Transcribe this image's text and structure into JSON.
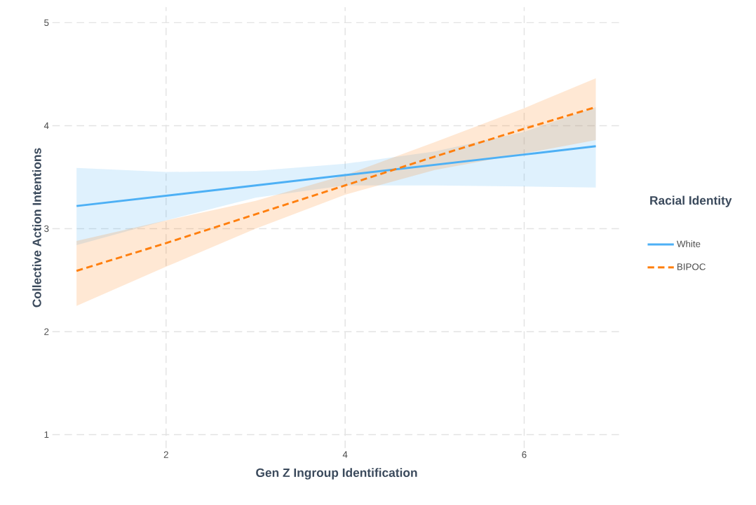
{
  "chart_data": {
    "type": "line",
    "xlabel": "Gen Z Ingroup Identification",
    "ylabel": "Collective Action Intentions",
    "legend_title": "Racial Identity",
    "x": [
      1,
      2,
      3,
      4,
      5,
      6,
      6.8
    ],
    "series": [
      {
        "name": "White",
        "color": "#4db0f5",
        "line_style": "solid",
        "values": [
          3.22,
          3.32,
          3.42,
          3.52,
          3.62,
          3.72,
          3.8
        ],
        "lower": [
          2.84,
          3.08,
          3.3,
          3.42,
          3.42,
          3.41,
          3.4
        ],
        "upper": [
          3.59,
          3.55,
          3.56,
          3.63,
          3.75,
          3.94,
          4.18
        ]
      },
      {
        "name": "BIPOC",
        "color": "#ff7f0e",
        "line_style": "dashed",
        "values": [
          2.59,
          2.86,
          3.14,
          3.42,
          3.7,
          3.97,
          4.18
        ],
        "lower": [
          2.25,
          2.63,
          3.0,
          3.33,
          3.57,
          3.73,
          3.86
        ],
        "upper": [
          2.88,
          3.08,
          3.27,
          3.52,
          3.84,
          4.17,
          4.46
        ]
      }
    ],
    "xlim": [
      0.73,
      7.08
    ],
    "ylim": [
      0.87,
      5.15
    ],
    "xticks": [
      2,
      4,
      6
    ],
    "yticks": [
      1,
      2,
      3,
      4,
      5
    ],
    "grid": true,
    "legend": "right"
  }
}
